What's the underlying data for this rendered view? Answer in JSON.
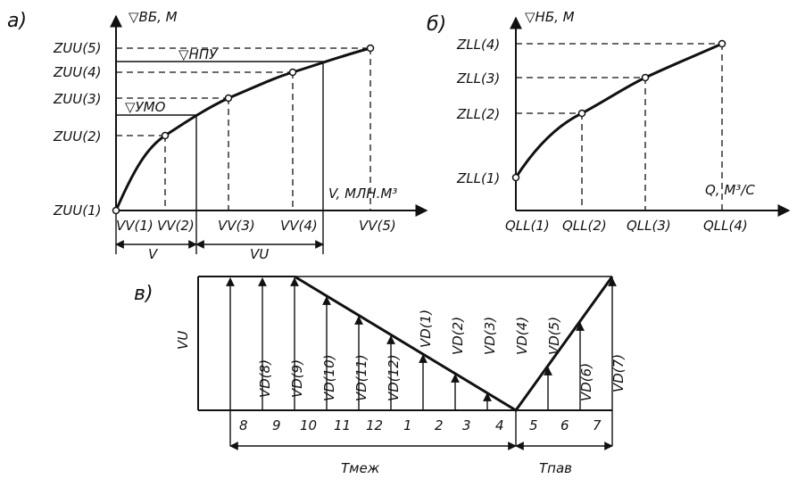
{
  "panel_a": {
    "label": "а)",
    "y_axis_label": "▽ВБ, М",
    "x_axis_label": "V, МЛН.М³",
    "y_ticks": [
      "ZUU(1)",
      "ZUU(2)",
      "ZUU(3)",
      "ZUU(4)",
      "ZUU(5)"
    ],
    "x_ticks": [
      "VV(1)",
      "VV(2)",
      "VV(3)",
      "VV(4)",
      "VV(5)"
    ],
    "level_npu": "▽НПУ",
    "level_umo": "▽УМО",
    "dim_v": "V",
    "dim_vu": "VU"
  },
  "panel_b": {
    "label": "б)",
    "y_axis_label": "▽НБ, М",
    "x_axis_label": "Q, М³/С",
    "y_ticks": [
      "ZLL(1)",
      "ZLL(2)",
      "ZLL(3)",
      "ZLL(4)"
    ],
    "x_ticks": [
      "QLL(1)",
      "QLL(2)",
      "QLL(3)",
      "QLL(4)"
    ]
  },
  "panel_c": {
    "label": "в)",
    "y_axis_label": "VU",
    "arrow_labels": [
      "VD(8)",
      "VD(9)",
      "VD(10)",
      "VD(11)",
      "VD(12)",
      "VD(1)",
      "VD(2)",
      "VD(3)",
      "VD(4)",
      "VD(5)",
      "VD(6)",
      "VD(7)"
    ],
    "months": [
      "8",
      "9",
      "10",
      "11",
      "12",
      "1",
      "2",
      "3",
      "4",
      "5",
      "6",
      "7"
    ],
    "t_mezh": "Tмеж",
    "t_pav": "Tпав"
  }
}
